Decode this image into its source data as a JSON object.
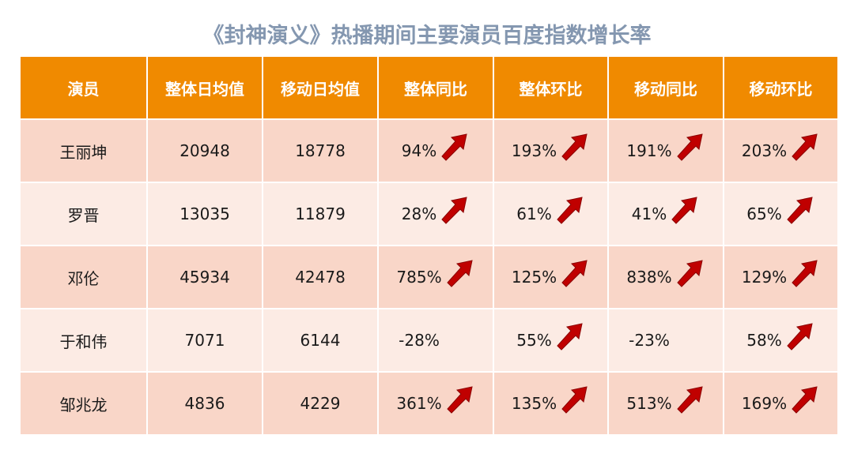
{
  "title": "《封神演义》热播期间主要演员百度指数增长率",
  "colors": {
    "header_bg": "#f08a00",
    "row_odd": "#f9d6c8",
    "row_even": "#fcebe4",
    "arrow": "#c00000",
    "title": "#8497b0"
  },
  "icons": {
    "up": "up-right-arrow-icon"
  },
  "chart_data": {
    "type": "table",
    "title": "《封神演义》热播期间主要演员百度指数增长率",
    "columns": [
      "演员",
      "整体日均值",
      "移动日均值",
      "整体同比",
      "整体环比",
      "移动同比",
      "移动环比"
    ],
    "rows": [
      {
        "actor": "王丽坤",
        "overall_avg": "20948",
        "mobile_avg": "18778",
        "growth": [
          {
            "text": "94%",
            "up": true
          },
          {
            "text": "193%",
            "up": true
          },
          {
            "text": "191%",
            "up": true
          },
          {
            "text": "203%",
            "up": true
          }
        ]
      },
      {
        "actor": "罗晋",
        "overall_avg": "13035",
        "mobile_avg": "11879",
        "growth": [
          {
            "text": "28%",
            "up": true
          },
          {
            "text": "61%",
            "up": true
          },
          {
            "text": "41%",
            "up": true
          },
          {
            "text": "65%",
            "up": true
          }
        ]
      },
      {
        "actor": "邓伦",
        "overall_avg": "45934",
        "mobile_avg": "42478",
        "growth": [
          {
            "text": "785%",
            "up": true
          },
          {
            "text": "125%",
            "up": true
          },
          {
            "text": "838%",
            "up": true
          },
          {
            "text": "129%",
            "up": true
          }
        ]
      },
      {
        "actor": "于和伟",
        "overall_avg": "7071",
        "mobile_avg": "6144",
        "growth": [
          {
            "text": "-28%",
            "up": false
          },
          {
            "text": "55%",
            "up": true
          },
          {
            "text": "-23%",
            "up": false
          },
          {
            "text": "58%",
            "up": true
          }
        ]
      },
      {
        "actor": "邹兆龙",
        "overall_avg": "4836",
        "mobile_avg": "4229",
        "growth": [
          {
            "text": "361%",
            "up": true
          },
          {
            "text": "135%",
            "up": true
          },
          {
            "text": "513%",
            "up": true
          },
          {
            "text": "169%",
            "up": true
          }
        ]
      }
    ]
  }
}
